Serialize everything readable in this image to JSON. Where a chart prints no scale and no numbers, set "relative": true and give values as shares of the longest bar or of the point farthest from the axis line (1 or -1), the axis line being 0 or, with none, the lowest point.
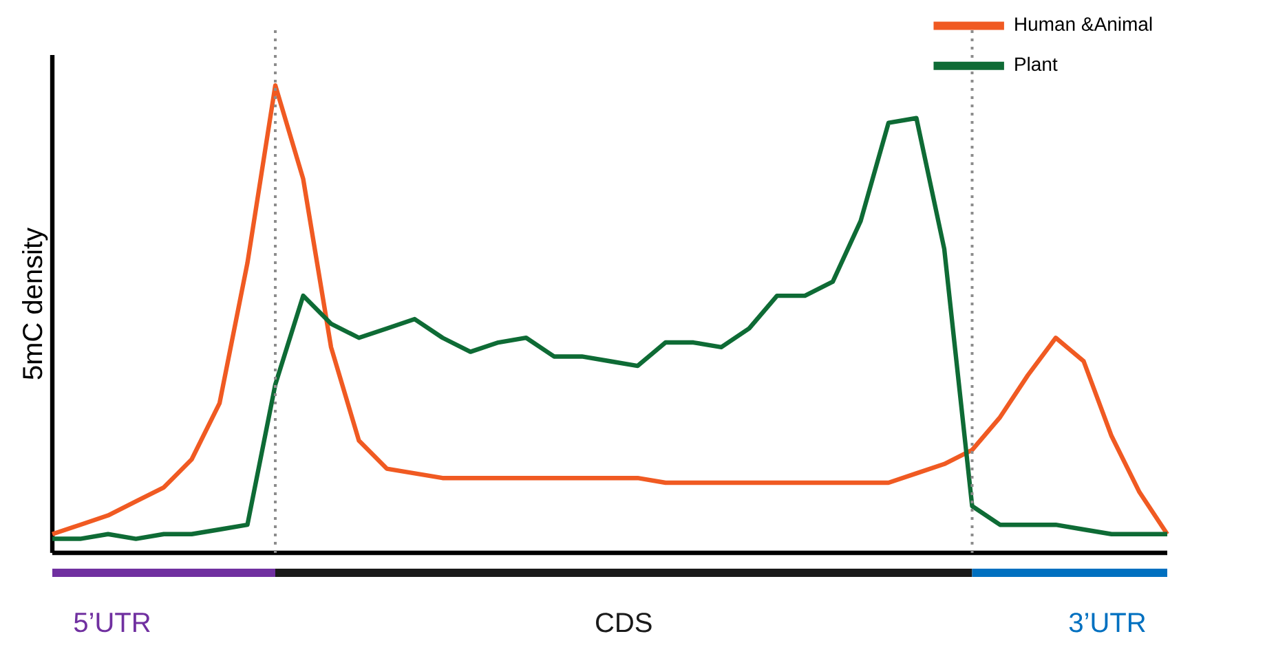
{
  "chart_data": {
    "type": "line",
    "relative": true,
    "ylabel": "5mC density",
    "tick_labels": false,
    "legend": "top right",
    "marker": "none",
    "line_style": "solid",
    "categories": [
      null,
      null,
      null,
      null,
      null,
      null,
      null,
      null,
      null,
      null,
      null,
      null,
      null,
      null,
      null,
      null,
      null,
      null,
      null,
      null,
      null,
      null,
      null,
      null,
      null,
      null,
      null,
      null,
      null,
      null,
      null,
      null,
      null,
      null,
      null,
      null,
      null,
      null,
      null,
      null,
      null
    ],
    "series": [
      {
        "name": "Human &Animal",
        "color": "#f05a22",
        "values": [
          0.04,
          0.06,
          0.08,
          0.11,
          0.14,
          0.2,
          0.32,
          0.62,
          1.0,
          0.8,
          0.44,
          0.24,
          0.18,
          0.17,
          0.16,
          0.16,
          0.16,
          0.16,
          0.16,
          0.16,
          0.16,
          0.16,
          0.15,
          0.15,
          0.15,
          0.15,
          0.15,
          0.15,
          0.15,
          0.15,
          0.15,
          0.17,
          0.19,
          0.22,
          0.29,
          0.38,
          0.46,
          0.41,
          0.25,
          0.13,
          0.04
        ]
      },
      {
        "name": "Plant",
        "color": "#0e6b35",
        "values": [
          0.03,
          0.03,
          0.04,
          0.03,
          0.04,
          0.04,
          0.05,
          0.06,
          0.36,
          0.55,
          0.49,
          0.46,
          0.48,
          0.5,
          0.46,
          0.43,
          0.45,
          0.46,
          0.42,
          0.42,
          0.41,
          0.4,
          0.45,
          0.45,
          0.44,
          0.48,
          0.55,
          0.55,
          0.58,
          0.71,
          0.92,
          0.93,
          0.65,
          0.1,
          0.06,
          0.06,
          0.06,
          0.05,
          0.04,
          0.04,
          0.04
        ]
      }
    ],
    "annotations": [
      "5’UTR",
      "CDS",
      "3’UTR"
    ]
  }
}
